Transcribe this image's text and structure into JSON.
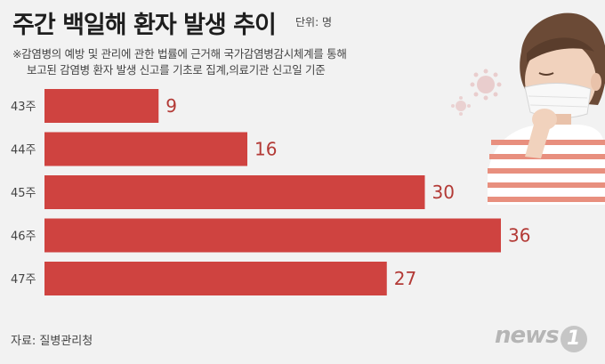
{
  "header": {
    "title": "주간 백일해 환자 발생 추이",
    "unit": "단위: 명",
    "note_line1": "※감염병의 예방 및 관리에 관한 법률에 근거해 국가감염병감시체계를 통해",
    "note_line2": "보고된 감염병 환자 발생 신고를 기초로 집계,의료기관 신고일 기준"
  },
  "footer": {
    "source": "자료: 질병관리청",
    "logo_text": "news",
    "logo_num": "1"
  },
  "colors": {
    "bar": "#cf4340",
    "value": "#b33a36",
    "background": "#f2f2f2"
  },
  "chart_data": {
    "type": "bar",
    "orientation": "horizontal",
    "categories": [
      "43주",
      "44주",
      "45주",
      "46주",
      "47주"
    ],
    "values": [
      9,
      16,
      30,
      36,
      27
    ],
    "title": "주간 백일해 환자 발생 추이",
    "unit": "명",
    "xlim": [
      0,
      36
    ]
  }
}
